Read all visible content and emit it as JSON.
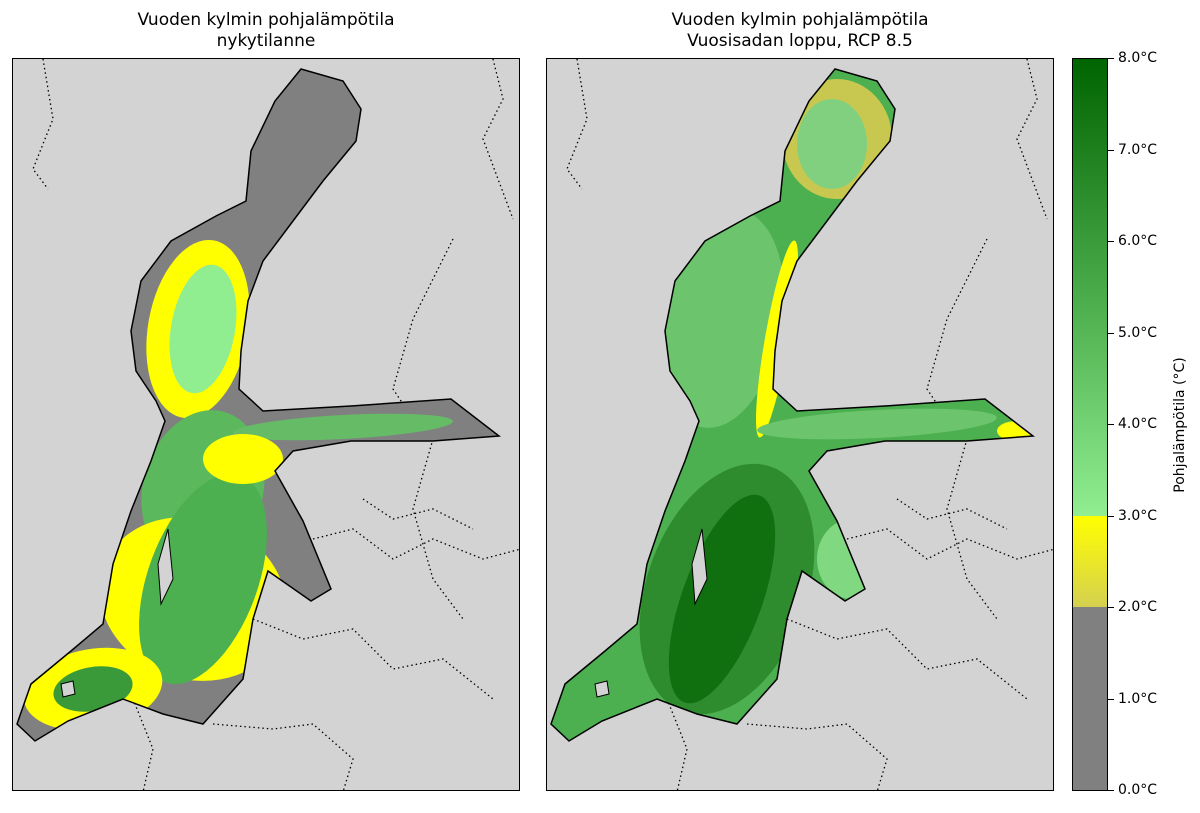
{
  "panels": [
    {
      "title_line1": "Vuoden kylmin pohjalämpötila",
      "title_line2": "nykytilanne",
      "scenario": "present"
    },
    {
      "title_line1": "Vuoden kylmin pohjalämpötila",
      "title_line2": "Vuosisadan loppu, RCP 8.5",
      "scenario": "rcp85"
    }
  ],
  "colorbar": {
    "label": "Pohjalämpötila (°C)",
    "range": [
      0,
      8
    ],
    "ticks": [
      "0.0°C",
      "1.0°C",
      "2.0°C",
      "3.0°C",
      "4.0°C",
      "5.0°C",
      "6.0°C",
      "7.0°C",
      "8.0°C"
    ],
    "segments": [
      {
        "from": 0,
        "to": 2,
        "color": "#808080"
      },
      {
        "from": 2,
        "to": 3,
        "color_low": "#d4d050",
        "color_high": "#ffff00"
      },
      {
        "from": 3,
        "to": 8,
        "color_low": "#90ee90",
        "color_high": "#006400"
      }
    ]
  },
  "colors": {
    "land": "#d3d3d3",
    "cold": "#808080",
    "yellow": "#ffff00",
    "light_green": "#90ee90",
    "dark_green": "#006400"
  }
}
